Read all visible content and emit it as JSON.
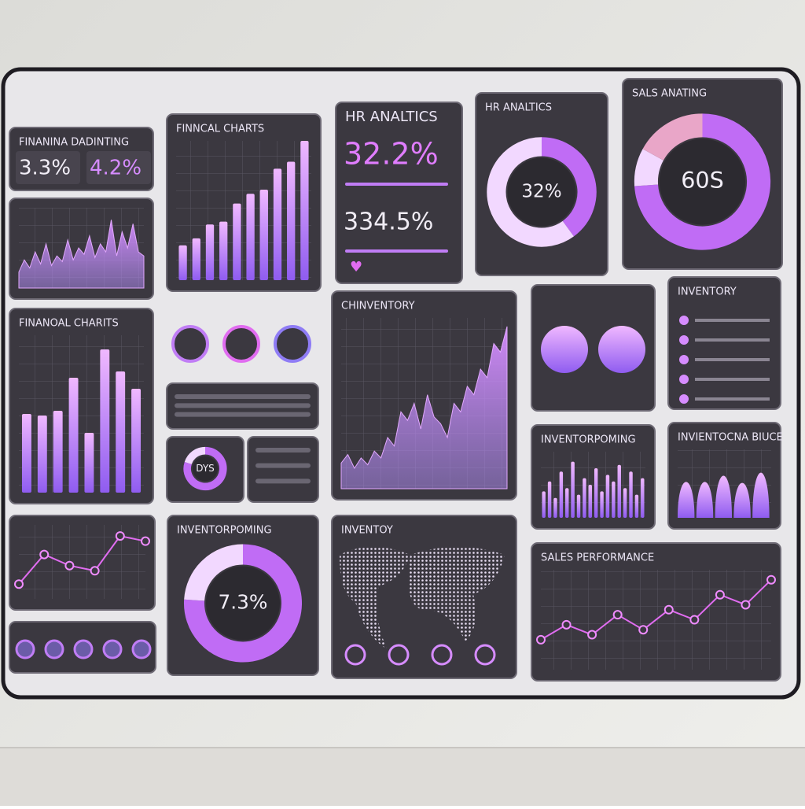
{
  "panels": [
    {
      "kind": "kpi",
      "title": "FINANINA DADINTING",
      "items": [
        "3.3%",
        "4.2%"
      ]
    },
    {
      "kind": "area",
      "values": [
        20,
        35,
        25,
        45,
        30,
        55,
        28,
        40,
        33,
        60,
        35,
        50,
        42,
        65,
        38,
        55,
        45,
        85,
        40,
        70,
        50,
        80,
        45,
        40
      ],
      "ylim": [
        0,
        100
      ]
    },
    {
      "kind": "bars",
      "title": "FINNCAL CHARTS",
      "values": [
        25,
        30,
        40,
        42,
        55,
        62,
        65,
        80,
        85,
        100
      ],
      "ylim": [
        0,
        100
      ]
    },
    {
      "kind": "kpi2",
      "title": "HR ANALTICS",
      "items": [
        "32.2%",
        "334.5%"
      ]
    },
    {
      "kind": "donut",
      "title": "HR ANALTICS",
      "label": "32%",
      "segments": [
        40,
        60
      ]
    },
    {
      "kind": "donut",
      "title": "SALS ANATING",
      "label": "60S",
      "segments": [
        74,
        9,
        17
      ]
    },
    {
      "kind": "bars",
      "title": "FINANOAL CHARITS",
      "values": [
        50,
        49,
        52,
        73,
        38,
        91,
        77,
        66
      ],
      "ylim": [
        0,
        100
      ]
    },
    {
      "kind": "buttons"
    },
    {
      "kind": "rows"
    },
    {
      "kind": "donut",
      "label": "DYS",
      "segments": [
        80,
        20
      ]
    },
    {
      "kind": "rows"
    },
    {
      "kind": "area",
      "title": "CHINVENTORY",
      "values": [
        15,
        20,
        12,
        18,
        14,
        22,
        18,
        30,
        25,
        45,
        40,
        50,
        35,
        55,
        42,
        38,
        30,
        50,
        45,
        60,
        55,
        70,
        65,
        85,
        80,
        95
      ],
      "ylim": [
        0,
        100
      ]
    },
    {
      "kind": "pies"
    },
    {
      "kind": "list",
      "title": "INVENTORY"
    },
    {
      "kind": "bars",
      "title": "INVENTORPOMING",
      "values": [
        40,
        55,
        30,
        70,
        45,
        85,
        35,
        60,
        50,
        75,
        40,
        65,
        55,
        80,
        45,
        70,
        35,
        60
      ],
      "ylim": [
        0,
        100
      ]
    },
    {
      "kind": "peaks",
      "title": "INVIENTOCNA BIUCE",
      "values": [
        70,
        70,
        82,
        68,
        88
      ],
      "ylim": [
        0,
        100
      ]
    },
    {
      "kind": "line",
      "values": [
        20,
        60,
        45,
        38,
        85,
        78
      ],
      "ylim": [
        0,
        100
      ]
    },
    {
      "kind": "icons"
    },
    {
      "kind": "donut",
      "title": "INVENTORPOMING",
      "label": "7.3%",
      "segments": [
        76,
        24
      ]
    },
    {
      "kind": "map",
      "title": "INVENTOY"
    },
    {
      "kind": "line",
      "title": "SALES PERFORMANCE",
      "values": [
        30,
        45,
        35,
        55,
        40,
        60,
        50,
        75,
        65,
        90
      ],
      "ylim": [
        0,
        100
      ]
    }
  ]
}
